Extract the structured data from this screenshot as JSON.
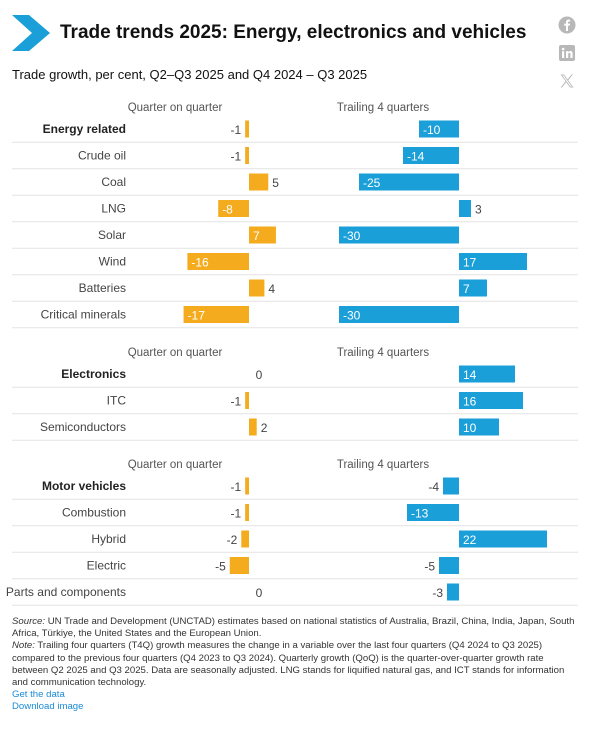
{
  "header": {
    "title": "Trade trends 2025: Energy, electronics and vehicles",
    "subtitle": "Trade growth, per cent, Q2–Q3 2025 and Q4 2024 – Q3 2025",
    "share_icons": [
      "facebook-icon",
      "linkedin-icon",
      "x-icon"
    ]
  },
  "colors": {
    "qoq": "#f5ab1e",
    "t4q": "#1a9fd9",
    "brand": "#1a9fd9",
    "row_divider": "#e3e3e3"
  },
  "chart_data": {
    "type": "bar",
    "orientation": "horizontal",
    "series_names": [
      "Quarter on quarter",
      "Trailing 4 quarters"
    ],
    "sections": [
      {
        "column_headers": [
          "Quarter on quarter",
          "Trailing 4 quarters"
        ],
        "rows": [
          {
            "label": "Energy related",
            "bold": true,
            "qoq": -1,
            "t4q": -10
          },
          {
            "label": "Crude oil",
            "bold": false,
            "qoq": -1,
            "t4q": -14
          },
          {
            "label": "Coal",
            "bold": false,
            "qoq": 5,
            "t4q": -25
          },
          {
            "label": "LNG",
            "bold": false,
            "qoq": -8,
            "t4q": 3
          },
          {
            "label": "Solar",
            "bold": false,
            "qoq": 7,
            "t4q": -30
          },
          {
            "label": "Wind",
            "bold": false,
            "qoq": -16,
            "t4q": 17
          },
          {
            "label": "Batteries",
            "bold": false,
            "qoq": 4,
            "t4q": 7
          },
          {
            "label": "Critical minerals",
            "bold": false,
            "qoq": -17,
            "t4q": -30
          }
        ]
      },
      {
        "column_headers": [
          "Quarter on quarter",
          "Trailing 4 quarters"
        ],
        "rows": [
          {
            "label": "Electronics",
            "bold": true,
            "qoq": 0,
            "t4q": 14
          },
          {
            "label": "ITC",
            "bold": false,
            "qoq": -1,
            "t4q": 16
          },
          {
            "label": "Semiconductors",
            "bold": false,
            "qoq": 2,
            "t4q": 10
          }
        ]
      },
      {
        "column_headers": [
          "Quarter on quarter",
          "Trailing 4 quarters"
        ],
        "rows": [
          {
            "label": "Motor vehicles",
            "bold": true,
            "qoq": -1,
            "t4q": -4
          },
          {
            "label": "Combustion",
            "bold": false,
            "qoq": -1,
            "t4q": -13
          },
          {
            "label": "Hybrid",
            "bold": false,
            "qoq": -2,
            "t4q": 22
          },
          {
            "label": "Electric",
            "bold": false,
            "qoq": -5,
            "t4q": -5
          },
          {
            "label": "Parts and components",
            "bold": false,
            "qoq": 0,
            "t4q": -3
          }
        ]
      }
    ]
  },
  "footer": {
    "source_label": "Source:",
    "source_text": " UN Trade and Development (UNCTAD) estimates based on national statistics of Australia, Brazil, China, India, Japan, South Africa, Türkiye, the United States and the European Union.",
    "note_label": "Note:",
    "note_text": " Trailing four quarters (T4Q) growth measures the change in a variable over the last four quarters (Q4 2024 to Q3 2025) compared to the previous four quarters (Q4 2023 to Q3 2024). Quarterly growth (QoQ) is the quarter-over-quarter growth rate between Q2 2025 and Q3 2025. Data are seasonally adjusted. LNG stands for liquified natural gas, and ICT stands for information and communication technology.",
    "get_data_link": "Get the data",
    "download_link": "Download image"
  }
}
